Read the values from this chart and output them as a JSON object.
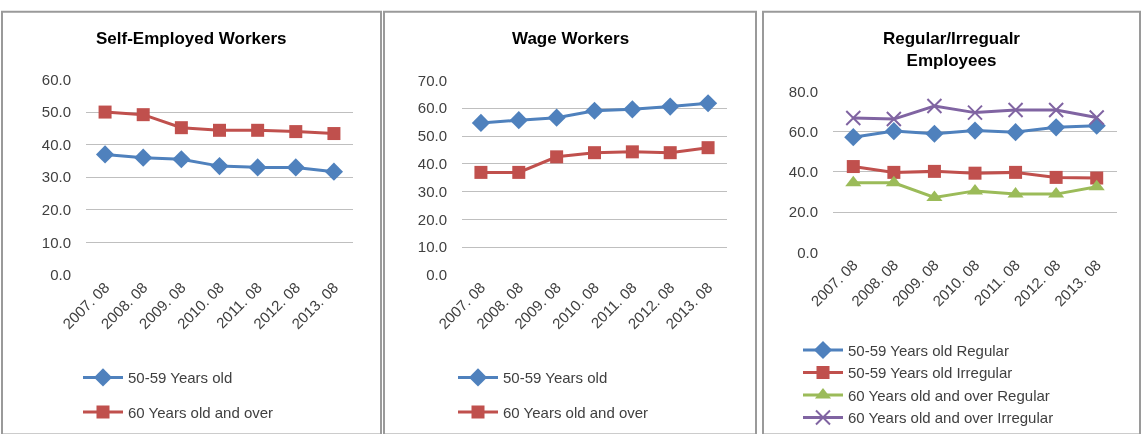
{
  "chart_data": [
    {
      "type": "line",
      "title": "Self-Employed Workers",
      "categories": [
        "2007. 08",
        "2008. 08",
        "2009. 08",
        "2010. 08",
        "2011. 08",
        "2012. 08",
        "2013. 08"
      ],
      "series": [
        {
          "name": "50-59 Years old",
          "color": "#4f81bd",
          "marker": "diamond",
          "values": [
            37.0,
            36.0,
            35.5,
            33.4,
            33.0,
            33.0,
            31.7
          ]
        },
        {
          "name": "60 Years old and over",
          "color": "#c0504d",
          "marker": "square",
          "values": [
            50.0,
            49.2,
            45.2,
            44.4,
            44.4,
            44.0,
            43.4
          ]
        }
      ],
      "ylim": [
        0,
        60
      ],
      "yticks": [
        {
          "value": 0,
          "label": "0.0"
        },
        {
          "value": 10,
          "label": "10.0"
        },
        {
          "value": 20,
          "label": "20.0"
        },
        {
          "value": 30,
          "label": "30.0"
        },
        {
          "value": 40,
          "label": "40.0"
        },
        {
          "value": 50,
          "label": "50.0"
        },
        {
          "value": 60,
          "label": "60.0"
        }
      ],
      "grid": "y",
      "legend": "bottom"
    },
    {
      "type": "line",
      "title": "Wage Workers",
      "categories": [
        "2007. 08",
        "2008. 08",
        "2009. 08",
        "2010. 08",
        "2011. 08",
        "2012. 08",
        "2013. 08"
      ],
      "series": [
        {
          "name": "50-59 Years old",
          "color": "#4f81bd",
          "marker": "diamond",
          "values": [
            54.7,
            55.7,
            56.6,
            59.1,
            59.6,
            60.6,
            61.8
          ]
        },
        {
          "name": "60 Years old and over",
          "color": "#c0504d",
          "marker": "square",
          "values": [
            36.9,
            36.9,
            42.5,
            44.0,
            44.3,
            44.0,
            45.8
          ]
        }
      ],
      "ylim": [
        0,
        70
      ],
      "yticks": [
        {
          "value": 0,
          "label": "0.0"
        },
        {
          "value": 10,
          "label": "10.0"
        },
        {
          "value": 20,
          "label": "20.0"
        },
        {
          "value": 30,
          "label": "30.0"
        },
        {
          "value": 40,
          "label": "40.0"
        },
        {
          "value": 50,
          "label": "50.0"
        },
        {
          "value": 60,
          "label": "60.0"
        },
        {
          "value": 70,
          "label": "70.0"
        }
      ],
      "grid": "y",
      "legend": "bottom"
    },
    {
      "type": "line",
      "title": "Regular/Irregualr Employees",
      "categories": [
        "2007. 08",
        "2008. 08",
        "2009. 08",
        "2010. 08",
        "2011. 08",
        "2012. 08",
        "2013. 08"
      ],
      "series": [
        {
          "name": "50-59 Years old Regular",
          "color": "#4f81bd",
          "marker": "diamond",
          "values": [
            57.2,
            60.2,
            58.9,
            60.5,
            59.7,
            62.1,
            62.9
          ]
        },
        {
          "name": "50-59 Years old Irregular",
          "color": "#c0504d",
          "marker": "square",
          "values": [
            42.6,
            39.7,
            40.2,
            39.3,
            39.7,
            37.2,
            36.9
          ]
        },
        {
          "name": "60 Years old and over Regular",
          "color": "#9bbb59",
          "marker": "triangle",
          "values": [
            34.5,
            34.5,
            27.2,
            30.5,
            28.9,
            28.9,
            32.6
          ]
        },
        {
          "name": "60 Years old and over Irregular",
          "color": "#8064a2",
          "marker": "cross",
          "values": [
            66.7,
            66.2,
            72.7,
            69.4,
            70.7,
            70.7,
            67.0
          ]
        }
      ],
      "ylim": [
        0,
        80
      ],
      "yticks": [
        {
          "value": 0,
          "label": "0.0"
        },
        {
          "value": 20,
          "label": "20.0"
        },
        {
          "value": 40,
          "label": "40.0"
        },
        {
          "value": 60,
          "label": "60.0"
        },
        {
          "value": 80,
          "label": "80.0"
        }
      ],
      "grid": "y",
      "legend": "bottom"
    }
  ]
}
